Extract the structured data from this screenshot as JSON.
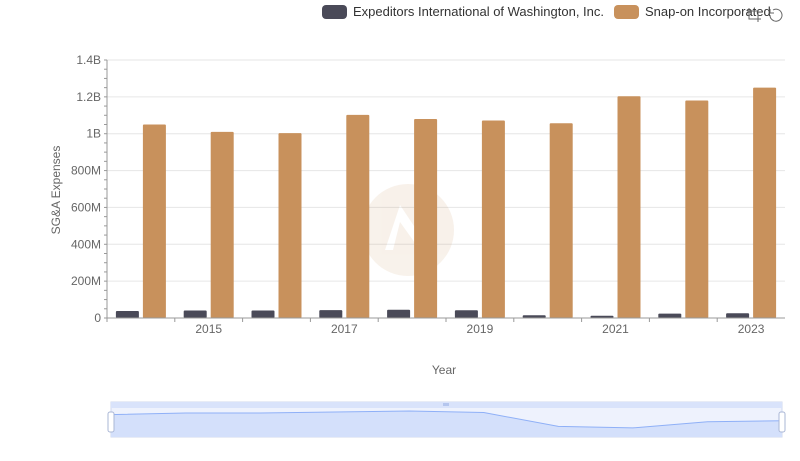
{
  "legend": {
    "series_a": "Expeditors International of Washington, Inc.",
    "series_b": "Snap-on Incorporated"
  },
  "toolbox": {
    "zoom_icon": "zoom-icon",
    "restore_icon": "restore-icon"
  },
  "colors": {
    "series_a": "#4a4a58",
    "series_b": "#c8915c",
    "grid": "#e6e6e6",
    "zoom_fill": "#d4e0fb",
    "zoom_line": "#8fb0f7"
  },
  "chart_data": {
    "type": "bar",
    "xlabel": "Year",
    "ylabel": "SG&A Expenses",
    "categories": [
      "2014",
      "2015",
      "2016",
      "2017",
      "2018",
      "2019",
      "2020",
      "2021",
      "2022",
      "2023"
    ],
    "x_tick_labels": [
      "2015",
      "2017",
      "2019",
      "2021",
      "2023"
    ],
    "y_tick_labels": [
      "0",
      "200M",
      "400M",
      "600M",
      "800M",
      "1B",
      "1.2B",
      "1.4B"
    ],
    "ylim": [
      0,
      1400000000
    ],
    "grid": true,
    "legend_position": "top-right",
    "series": [
      {
        "name": "Expeditors International of Washington, Inc.",
        "values": [
          38000000,
          41000000,
          41000000,
          43000000,
          45000000,
          42000000,
          15000000,
          12000000,
          24000000,
          26000000
        ]
      },
      {
        "name": "Snap-on Incorporated",
        "values": [
          1050000000,
          1010000000,
          1003000000,
          1102000000,
          1080000000,
          1072000000,
          1057000000,
          1203000000,
          1180000000,
          1250000000
        ]
      }
    ]
  }
}
